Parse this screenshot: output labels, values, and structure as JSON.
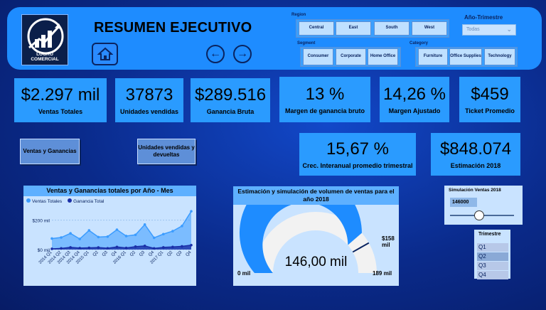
{
  "header": {
    "title": "RESUMEN EJECUTIVO",
    "logo_text": "LOGRO COMERCIAL",
    "filters": {
      "region": {
        "label": "Region",
        "options": [
          "Central",
          "East",
          "South",
          "West"
        ]
      },
      "segment": {
        "label": "Segment",
        "options": [
          "Consumer",
          "Corporate",
          "Home Office"
        ]
      },
      "category": {
        "label": "Category",
        "options": [
          "Furniture",
          "Office Supplies",
          "Technology"
        ]
      },
      "year_quarter": {
        "label": "Año-Trimestre",
        "value": "Todas"
      }
    }
  },
  "kpis": [
    {
      "value": "$2.297 mil",
      "label": "Ventas Totales"
    },
    {
      "value": "37873",
      "label": "Unidades vendidas"
    },
    {
      "value": "$289.516",
      "label": "Ganancia Bruta"
    },
    {
      "value": "13 %",
      "label": "Margen de ganancia bruto"
    },
    {
      "value": "14,26 %",
      "label": "Margen Ajustado"
    },
    {
      "value": "$459",
      "label": "Ticket Promedio"
    },
    {
      "value": "15,67 %",
      "label": "Crec. Interanual promedio trimestral"
    },
    {
      "value": "$848.074",
      "label": "Estimación 2018"
    }
  ],
  "nav_buttons": {
    "sales": "Ventas y Ganancias",
    "units": "Unidades vendidas y devueltas"
  },
  "line_chart": {
    "title": "Ventas y Ganancias totales por Año - Mes",
    "legend": [
      "Ventas Totales",
      "Ganancia Total"
    ],
    "y_ticks": [
      "$200 mil",
      "$0 mil"
    ],
    "colors": {
      "ventas": "#3b9cff",
      "ganancia": "#1a2fa8"
    }
  },
  "chart_data": {
    "type": "area",
    "categories": [
      "2014 Q1",
      "2014 Q2",
      "2014 Q3",
      "2014 Q4",
      "2015 Q1",
      "2015 Q2",
      "2015 Q3",
      "2015 Q4",
      "2016 Q1",
      "2016 Q2",
      "2016 Q3",
      "2016 Q4",
      "2017 Q1",
      "2017 Q2",
      "2017 Q3",
      "2017 Q4"
    ],
    "x_tick_labels": [
      "2014 Q1",
      "2014 Q2",
      "2014 Q3",
      "2014 Q4",
      "2015 Q1",
      "Q2",
      "Q3",
      "Q4",
      "2016 Q1",
      "Q2",
      "Q3",
      "Q4",
      "2017 Q1",
      "Q2",
      "Q3",
      "Q4"
    ],
    "series": [
      {
        "name": "Ventas Totales",
        "values": [
          75,
          82,
          110,
          72,
          130,
          85,
          88,
          135,
          92,
          100,
          170,
          80,
          105,
          125,
          160,
          260
        ]
      },
      {
        "name": "Ganancia Total",
        "values": [
          5,
          8,
          15,
          10,
          12,
          14,
          9,
          18,
          11,
          20,
          25,
          8,
          15,
          18,
          22,
          30
        ]
      }
    ],
    "ylim": [
      0,
      280
    ]
  },
  "gauge": {
    "title": "Estimación y simulación de volumen de ventas para el año 2018",
    "value": "146,00 mil",
    "min_label": "0 mil",
    "max_label": "189 mil",
    "target_label": "$158 mil",
    "value_num": 146,
    "max_num": 189,
    "target_num": 158
  },
  "simulation": {
    "title": "Simulación Ventas 2018",
    "value": "146000",
    "slider_fraction": 0.45
  },
  "quarter": {
    "title": "Trimestre",
    "options": [
      "Q1",
      "Q2",
      "Q3",
      "Q4"
    ],
    "selected": "Q2"
  }
}
